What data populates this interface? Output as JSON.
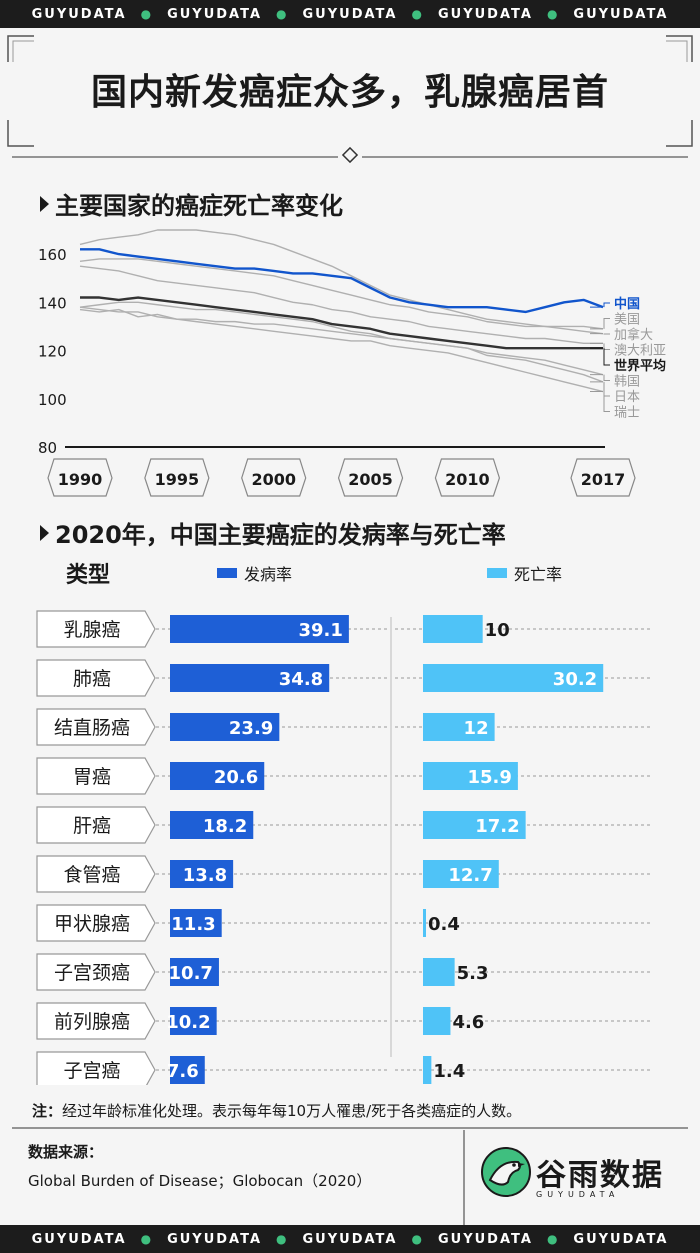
{
  "brand": {
    "band_word": "GUYUDATA",
    "logo_text": "谷雨数据",
    "logo_sub": "GUYUDATA"
  },
  "title": "国内新发癌症众多，乳腺癌居首",
  "colors": {
    "china_blue": "#1155cc",
    "death_light_blue": "#4fc3f7",
    "world_black": "#333333",
    "other_gray": "#b0b0b0",
    "bar_blue": "#1e5fd6",
    "accent_green": "#3fbf7f"
  },
  "chart_data": [
    {
      "type": "line",
      "title": "主要国家的癌症死亡率变化",
      "x_ticks": [
        "1990",
        "1995",
        "2000",
        "2005",
        "2010",
        "2017"
      ],
      "x": [
        1990,
        1991,
        1992,
        1993,
        1994,
        1995,
        1996,
        1997,
        1998,
        1999,
        2000,
        2001,
        2002,
        2003,
        2004,
        2005,
        2006,
        2007,
        2008,
        2009,
        2010,
        2011,
        2012,
        2013,
        2014,
        2015,
        2016,
        2017
      ],
      "ylim": [
        80,
        170
      ],
      "y_ticks": [
        80,
        100,
        120,
        140,
        160
      ],
      "series": [
        {
          "name": "中国",
          "role": "china",
          "values": [
            162,
            162,
            160,
            159,
            158,
            157,
            156,
            155,
            154,
            154,
            153,
            152,
            152,
            151,
            150,
            146,
            142,
            140,
            139,
            138,
            138,
            138,
            137,
            136,
            138,
            140,
            141,
            138
          ]
        },
        {
          "name": "美国",
          "role": "other",
          "values": [
            164,
            166,
            167,
            168,
            170,
            170,
            170,
            169,
            168,
            166,
            164,
            161,
            158,
            155,
            151,
            147,
            143,
            141,
            139,
            137,
            135,
            133,
            132,
            131,
            130,
            130,
            130,
            129
          ]
        },
        {
          "name": "加拿大",
          "role": "other",
          "values": [
            157,
            158,
            158,
            158,
            157,
            156,
            155,
            154,
            153,
            152,
            151,
            149,
            147,
            145,
            143,
            141,
            139,
            138,
            136,
            135,
            134,
            132,
            131,
            130,
            130,
            129,
            128,
            127
          ]
        },
        {
          "name": "澳大利亚",
          "role": "other",
          "values": [
            155,
            154,
            153,
            151,
            149,
            148,
            147,
            146,
            145,
            144,
            142,
            140,
            139,
            137,
            136,
            134,
            133,
            132,
            130,
            129,
            128,
            127,
            126,
            125,
            125,
            124,
            123,
            123
          ]
        },
        {
          "name": "世界平均",
          "role": "world",
          "values": [
            142,
            142,
            141,
            142,
            141,
            140,
            139,
            138,
            137,
            136,
            135,
            134,
            133,
            131,
            130,
            129,
            127,
            126,
            125,
            124,
            123,
            122,
            121,
            121,
            121,
            121,
            121,
            121
          ]
        },
        {
          "name": "韩国",
          "role": "other",
          "values": [
            138,
            139,
            140,
            140,
            139,
            138,
            137,
            137,
            136,
            135,
            134,
            133,
            132,
            130,
            128,
            127,
            125,
            124,
            123,
            122,
            121,
            119,
            118,
            117,
            116,
            114,
            112,
            110
          ]
        },
        {
          "name": "日本",
          "role": "other",
          "values": [
            137,
            136,
            137,
            134,
            135,
            133,
            133,
            132,
            132,
            131,
            131,
            130,
            129,
            128,
            127,
            126,
            125,
            124,
            123,
            122,
            121,
            118,
            117,
            116,
            114,
            112,
            110,
            107
          ]
        },
        {
          "name": "瑞士",
          "role": "other",
          "values": [
            138,
            137,
            136,
            136,
            134,
            133,
            132,
            131,
            130,
            129,
            128,
            127,
            126,
            125,
            124,
            124,
            122,
            121,
            120,
            119,
            117,
            115,
            113,
            111,
            109,
            107,
            105,
            103
          ]
        }
      ]
    },
    {
      "type": "bar",
      "title": "2020年，中国主要癌症的发病率与死亡率",
      "category_header": "类型",
      "categories": [
        "乳腺癌",
        "肺癌",
        "结直肠癌",
        "胃癌",
        "肝癌",
        "食管癌",
        "甲状腺癌",
        "子宫颈癌",
        "前列腺癌",
        "子宫癌"
      ],
      "series": [
        {
          "name": "发病率",
          "values": [
            39.1,
            34.8,
            23.9,
            20.6,
            18.2,
            13.8,
            11.3,
            10.7,
            10.2,
            7.6
          ]
        },
        {
          "name": "死亡率",
          "values": [
            10,
            30.2,
            12,
            15.9,
            17.2,
            12.7,
            0.4,
            5.3,
            4.6,
            1.4
          ]
        }
      ]
    }
  ],
  "note": {
    "label": "注：",
    "text": "经过年龄标准化处理。表示每年每10万人罹患/死于各类癌症的人数。"
  },
  "source": {
    "label": "数据来源：",
    "text": "Global Burden of Disease；Globocan（2020）"
  }
}
